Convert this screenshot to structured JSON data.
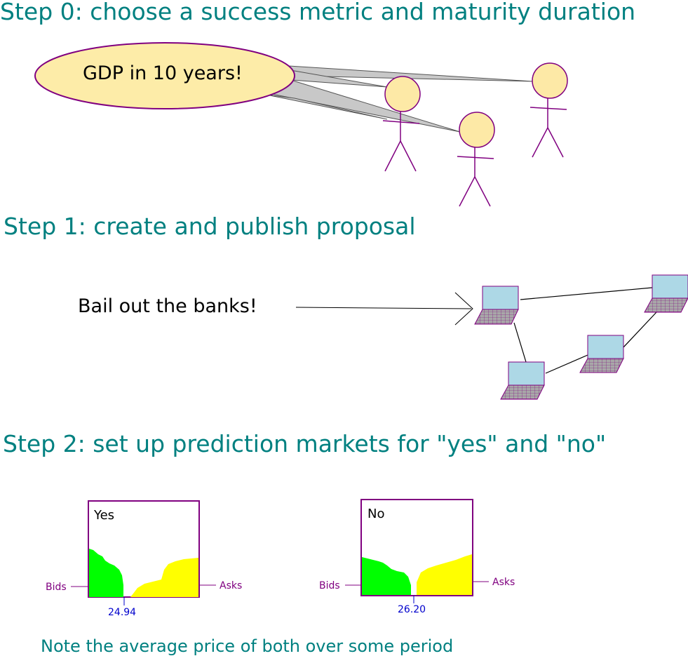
{
  "steps": [
    {
      "title": "Step 0: choose a success metric and maturity duration"
    },
    {
      "title": "Step 1: create and publish proposal"
    },
    {
      "title": "Step 2: set up prediction markets for \"yes\" and \"no\""
    }
  ],
  "bubble": {
    "text": "GDP in 10 years!"
  },
  "proposal": {
    "text": "Bail out the banks!"
  },
  "markets": [
    {
      "title": "Yes",
      "bids_label": "Bids",
      "asks_label": "Asks",
      "price": "24.94"
    },
    {
      "title": "No",
      "bids_label": "Bids",
      "asks_label": "Asks",
      "price": "26.20"
    }
  ],
  "note": "Note the average price of both over some period",
  "colors": {
    "heading": "#008080",
    "figure_stroke": "#800080",
    "head_fill": "#fde9a6",
    "bubble_fill": "#fdeca8",
    "screen_fill": "#add8e6",
    "bids_fill": "#00ff00",
    "asks_fill": "#ffff00",
    "price_color": "#0000cc"
  },
  "icons": [
    "stick-figure-icon",
    "laptop-icon"
  ]
}
